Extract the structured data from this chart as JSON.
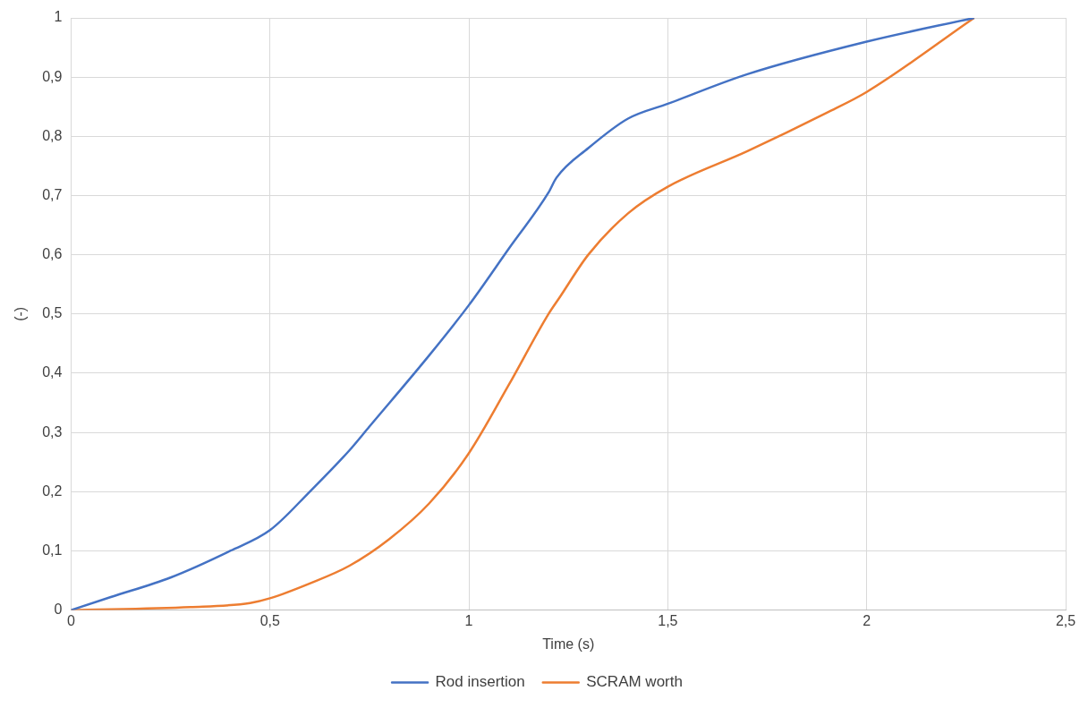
{
  "chart_data": {
    "type": "line",
    "xlabel": "Time (s)",
    "ylabel": "(-)",
    "xlim": [
      0,
      2.5
    ],
    "xticks": [
      0,
      {
        "value": 0.5,
        "label": "0,5"
      },
      1,
      {
        "value": 1.5,
        "label": "1,5"
      },
      2,
      {
        "value": 2.5,
        "label": "2,5"
      }
    ],
    "ylim": [
      0,
      1
    ],
    "yticks": [
      0,
      {
        "value": 0.1,
        "label": "0,1"
      },
      {
        "value": 0.2,
        "label": "0,2"
      },
      {
        "value": 0.3,
        "label": "0,3"
      },
      {
        "value": 0.4,
        "label": "0,4"
      },
      {
        "value": 0.5,
        "label": "0,5"
      },
      {
        "value": 0.6,
        "label": "0,6"
      },
      {
        "value": 0.7,
        "label": "0,7"
      },
      {
        "value": 0.8,
        "label": "0,8"
      },
      {
        "value": 0.9,
        "label": "0,9"
      },
      1
    ],
    "grid": true,
    "legend": "bottom",
    "marker": "none",
    "line_style": "solid",
    "series": [
      {
        "name": "Rod insertion",
        "color": "#4472c4",
        "x": [
          0,
          0.1,
          0.25,
          0.4,
          0.5,
          0.6,
          0.7,
          0.75,
          0.9,
          1.0,
          1.1,
          1.2,
          1.22,
          1.3,
          1.4,
          1.5,
          1.7,
          2.0,
          2.27
        ],
        "values": [
          0,
          0.022,
          0.055,
          0.1,
          0.135,
          0.2,
          0.27,
          0.31,
          0.43,
          0.515,
          0.61,
          0.705,
          0.73,
          0.78,
          0.83,
          0.855,
          0.905,
          0.96,
          1
        ]
      },
      {
        "name": "SCRAM worth",
        "color": "#ed7d31",
        "x": [
          0,
          0.3,
          0.45,
          0.5,
          0.6,
          0.7,
          0.8,
          0.9,
          1.0,
          1.1,
          1.2,
          1.23,
          1.3,
          1.4,
          1.5,
          1.7,
          1.9,
          2.0,
          2.27
        ],
        "values": [
          0,
          0.005,
          0.012,
          0.02,
          0.045,
          0.075,
          0.12,
          0.18,
          0.265,
          0.38,
          0.5,
          0.53,
          0.6,
          0.67,
          0.715,
          0.775,
          0.84,
          0.875,
          1
        ]
      }
    ]
  }
}
